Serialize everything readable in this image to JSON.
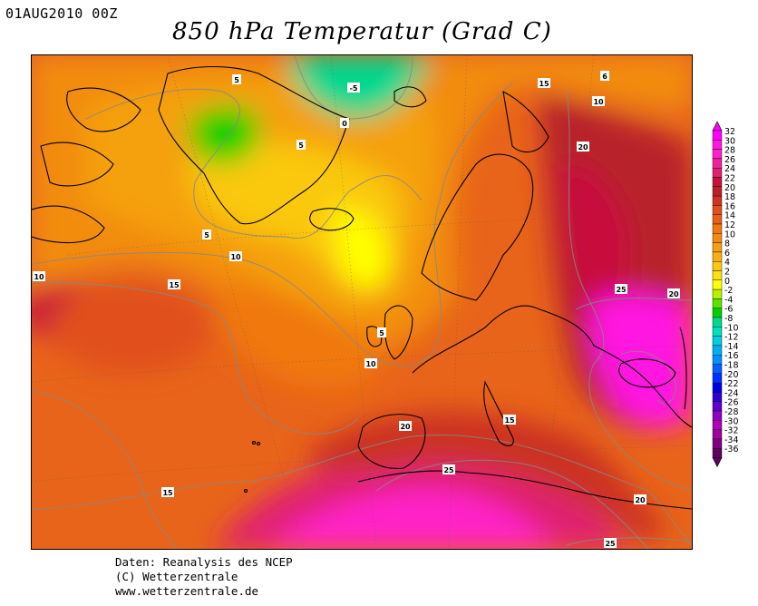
{
  "header": {
    "date": "01AUG2010 00Z",
    "title": "850 hPa Temperatur (Grad C)"
  },
  "credits": {
    "line1": "Daten: Reanalysis des NCEP",
    "line2": "(C) Wetterzentrale",
    "line3": "www.wetterzentrale.de"
  },
  "legend": {
    "levels": [
      {
        "label": "32",
        "color": "#ff00ff"
      },
      {
        "label": "30",
        "color": "#ff19e0"
      },
      {
        "label": "28",
        "color": "#ff20c8"
      },
      {
        "label": "26",
        "color": "#f0209c"
      },
      {
        "label": "24",
        "color": "#e02070"
      },
      {
        "label": "22",
        "color": "#c8103c"
      },
      {
        "label": "20",
        "color": "#b8202c"
      },
      {
        "label": "18",
        "color": "#cc3322"
      },
      {
        "label": "16",
        "color": "#e0501c"
      },
      {
        "label": "14",
        "color": "#e86018"
      },
      {
        "label": "12",
        "color": "#f07810"
      },
      {
        "label": "10",
        "color": "#f28c10"
      },
      {
        "label": "8",
        "color": "#f5a010"
      },
      {
        "label": "6",
        "color": "#f8b010"
      },
      {
        "label": "4",
        "color": "#fac810"
      },
      {
        "label": "2",
        "color": "#fde010"
      },
      {
        "label": "0",
        "color": "#ffff00"
      },
      {
        "label": "-2",
        "color": "#b8f000"
      },
      {
        "label": "-4",
        "color": "#60e000"
      },
      {
        "label": "-6",
        "color": "#00d000"
      },
      {
        "label": "-8",
        "color": "#00d890"
      },
      {
        "label": "-10",
        "color": "#00e0c0"
      },
      {
        "label": "-12",
        "color": "#00d0e0"
      },
      {
        "label": "-14",
        "color": "#00b0f0"
      },
      {
        "label": "-16",
        "color": "#0090ff"
      },
      {
        "label": "-18",
        "color": "#0060ff"
      },
      {
        "label": "-20",
        "color": "#0030ff"
      },
      {
        "label": "-22",
        "color": "#0000e0"
      },
      {
        "label": "-24",
        "color": "#3000d0"
      },
      {
        "label": "-26",
        "color": "#6000c8"
      },
      {
        "label": "-28",
        "color": "#9000c0"
      },
      {
        "label": "-30",
        "color": "#b000b8"
      },
      {
        "label": "-32",
        "color": "#a000a0"
      },
      {
        "label": "-34",
        "color": "#800080"
      },
      {
        "label": "-36",
        "color": "#600060"
      }
    ]
  },
  "contour_labels": [
    "-5",
    "0",
    "5",
    "5",
    "5",
    "5",
    "6",
    "10",
    "10",
    "10",
    "10",
    "15",
    "15",
    "15",
    "15",
    "20",
    "20",
    "20",
    "20",
    "25",
    "25",
    "25"
  ]
}
